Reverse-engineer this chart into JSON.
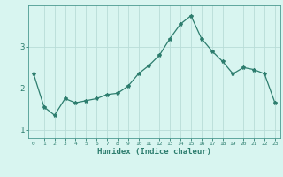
{
  "xlabel": "Humidex (Indice chaleur)",
  "ylabel": "",
  "x_values": [
    0,
    1,
    2,
    3,
    4,
    5,
    6,
    7,
    8,
    9,
    10,
    11,
    12,
    13,
    14,
    15,
    16,
    17,
    18,
    19,
    20,
    21,
    22,
    23
  ],
  "y_values": [
    2.35,
    1.55,
    1.35,
    1.75,
    1.65,
    1.7,
    1.75,
    1.85,
    1.88,
    2.05,
    2.35,
    2.55,
    2.8,
    3.2,
    3.55,
    3.75,
    3.2,
    2.9,
    2.65,
    2.35,
    2.5,
    2.45,
    2.35,
    1.65
  ],
  "line_color": "#2d7d6e",
  "marker": "*",
  "marker_size": 3,
  "background_color": "#d8f5f0",
  "grid_color": "#b8ddd8",
  "tick_label_color": "#2d7d6e",
  "axis_color": "#4a9990",
  "ylim": [
    0.8,
    4.0
  ],
  "yticks": [
    1,
    2,
    3
  ],
  "figsize": [
    3.2,
    2.0
  ],
  "dpi": 100
}
